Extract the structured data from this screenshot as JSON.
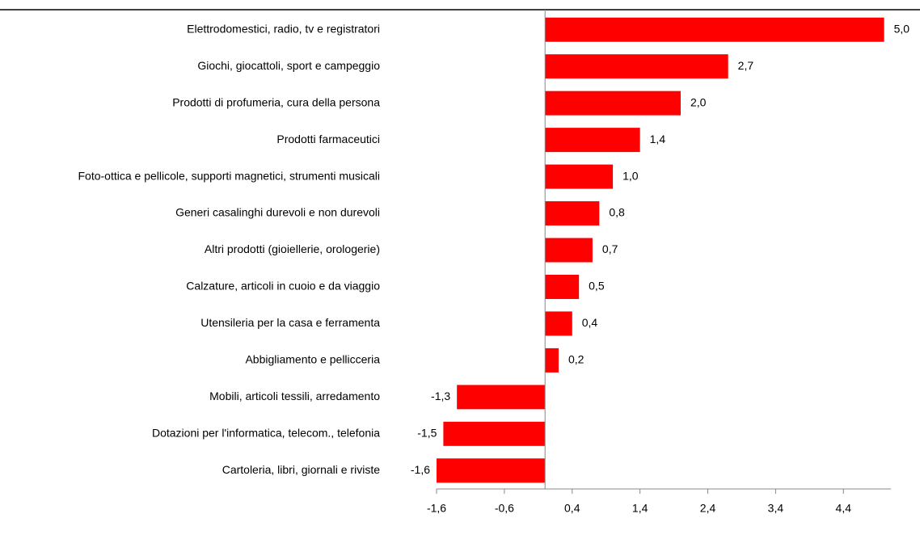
{
  "chart_data": {
    "type": "bar",
    "orientation": "horizontal",
    "categories": [
      "Elettrodomestici, radio, tv e registratori",
      "Giochi, giocattoli, sport e campeggio",
      "Prodotti di profumeria, cura della persona",
      "Prodotti farmaceutici",
      "Foto-ottica e pellicole, supporti magnetici, strumenti  musicali",
      "Generi casalinghi durevoli e non durevoli",
      "Altri prodotti (gioiellerie, orologerie)",
      "Calzature, articoli in cuoio e da viaggio",
      "Utensileria per la casa e ferramenta",
      "Abbigliamento e pellicceria",
      "Mobili, articoli tessili, arredamento",
      "Dotazioni per l'informatica, telecom., telefonia",
      "Cartoleria, libri, giornali e riviste"
    ],
    "values": [
      5.0,
      2.7,
      2.0,
      1.4,
      1.0,
      0.8,
      0.7,
      0.5,
      0.4,
      0.2,
      -1.3,
      -1.5,
      -1.6
    ],
    "value_labels": [
      "5,0",
      "2,7",
      "2,0",
      "1,4",
      "1,0",
      "0,8",
      "0,7",
      "0,5",
      "0,4",
      "0,2",
      "-1,3",
      "-1,5",
      "-1,6"
    ],
    "color": "#ff0000",
    "xlim": [
      -1.6,
      5.1
    ],
    "xticks": [
      {
        "value": -1.6,
        "label": "-1,6"
      },
      {
        "value": -0.6,
        "label": "-0,6"
      },
      {
        "value": 0.4,
        "label": "0,4"
      },
      {
        "value": 1.4,
        "label": "1,4"
      },
      {
        "value": 2.4,
        "label": "2,4"
      },
      {
        "value": 3.4,
        "label": "3,4"
      },
      {
        "value": 4.4,
        "label": "4,4"
      }
    ],
    "grid": false
  }
}
